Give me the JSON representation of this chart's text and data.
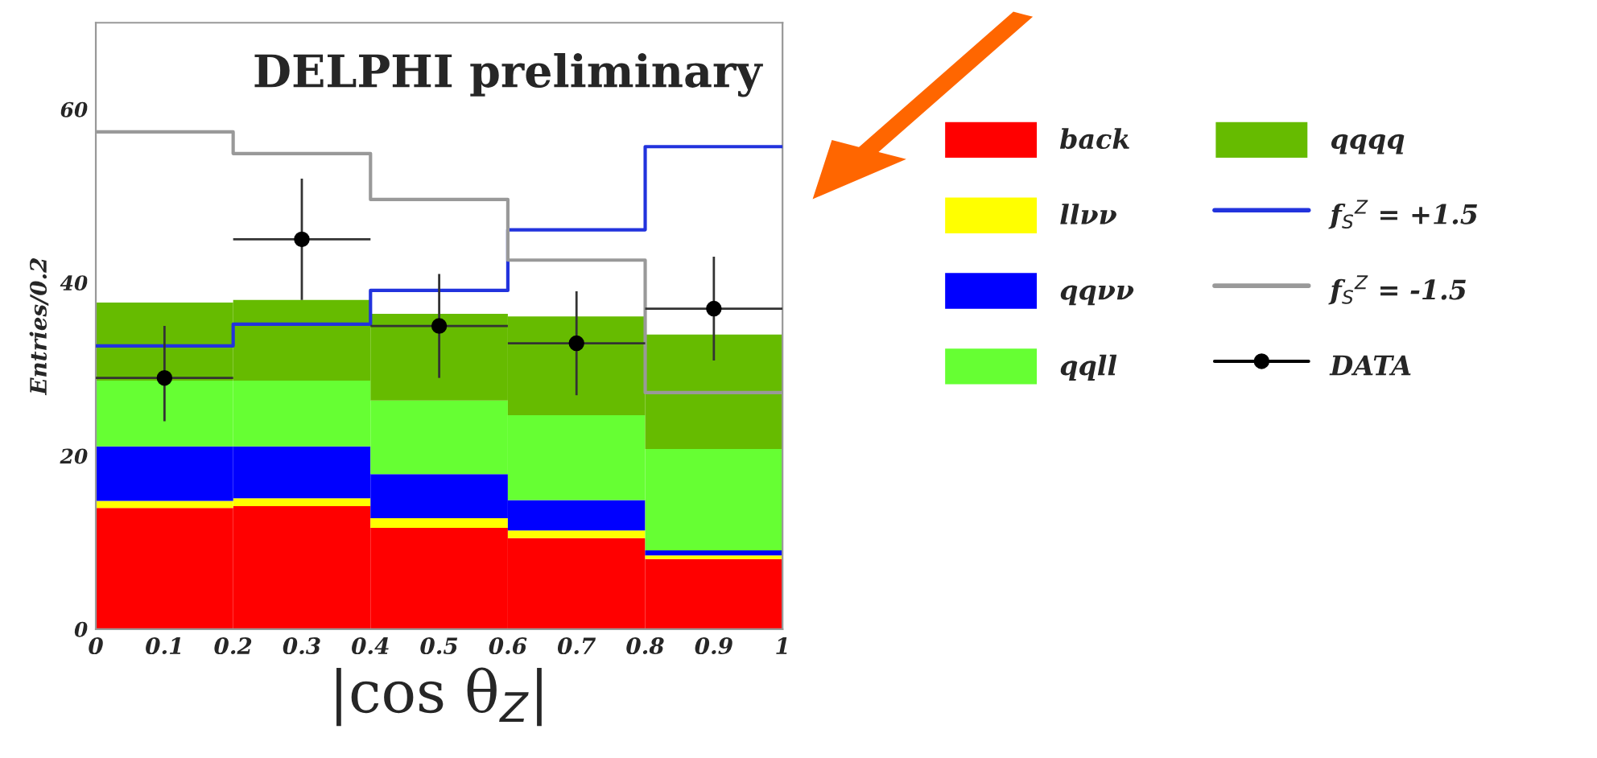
{
  "chart_data": {
    "type": "bar",
    "stacked": true,
    "xlabel": "|cos θ$_{Z}$|",
    "ylabel": "Entries/0.2",
    "annotations": [
      "DELPHI preliminary"
    ],
    "x": [
      0.1,
      0.3,
      0.5,
      0.7,
      0.9
    ],
    "series": [
      {
        "name": "back",
        "color": "#ff0000",
        "values": [
          14,
          14.2,
          11.7,
          10.5,
          8.1
        ]
      },
      {
        "name": "llνν",
        "color": "#ffff00",
        "values": [
          0.8,
          0.9,
          1.1,
          0.9,
          0.4
        ]
      },
      {
        "name": "qqνν",
        "color": "#0000ff",
        "values": [
          6.3,
          6.0,
          5.1,
          3.5,
          0.6
        ]
      },
      {
        "name": "qqll",
        "color": "#66ff33",
        "values": [
          7.6,
          7.6,
          8.5,
          9.8,
          11.7
        ]
      },
      {
        "name": "qqqq",
        "color": "#66bb00",
        "values": [
          9.0,
          9.3,
          10.0,
          11.4,
          13.2
        ]
      },
      {
        "type": "step",
        "name": "f$_{S}$$^{Z}$ = +1.5",
        "color": "#2233dd",
        "x": [
          0,
          0.2,
          0.4,
          0.6,
          0.8,
          1
        ],
        "values": [
          32.7,
          35.2,
          39.1,
          46.1,
          55.7,
          55.7
        ]
      },
      {
        "type": "step",
        "name": "f$_{S}$$^{Z}$ = -1.5",
        "color": "#999999",
        "x": [
          0,
          0.2,
          0.4,
          0.6,
          0.8,
          1
        ],
        "values": [
          57.4,
          54.9,
          49.6,
          42.6,
          27.3,
          27.3
        ]
      },
      {
        "type": "scatter",
        "name": "DATA",
        "color": "#000000",
        "marker": "circle",
        "values": [
          29,
          45,
          35,
          33,
          37
        ],
        "errors": [
          [
            24,
            35
          ],
          [
            38,
            52
          ],
          [
            29,
            41
          ],
          [
            27,
            39
          ],
          [
            31,
            43
          ]
        ],
        "xerrors": [
          0.1,
          0.1,
          0.1,
          0.1,
          0.1
        ]
      }
    ],
    "xlim": [
      0,
      1
    ],
    "ylim": [
      0,
      70
    ],
    "xticks": [
      0,
      0.1,
      0.2,
      0.3,
      0.4,
      0.5,
      0.6,
      0.7,
      0.8,
      0.9,
      1
    ],
    "yticks": [
      0,
      20,
      40,
      60
    ],
    "grid": false,
    "legend": "right"
  }
}
